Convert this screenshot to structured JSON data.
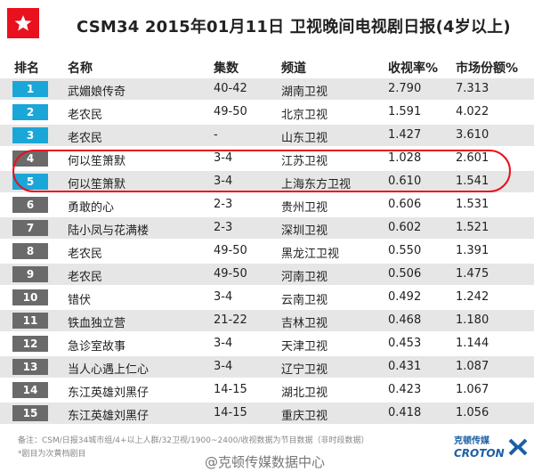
{
  "header": {
    "title": "CSM34   2015年01月11日  卫视晚间电视剧日报(4岁以上)"
  },
  "columns": {
    "rank": "排名",
    "name": "名称",
    "episodes": "集数",
    "channel": "频道",
    "rating": "收视率%",
    "share": "市场份额%"
  },
  "rows": [
    {
      "rank": "1",
      "name": "武媚娘传奇",
      "episodes": "40-42",
      "channel": "湖南卫视",
      "rating": "2.790",
      "share": "7.313"
    },
    {
      "rank": "2",
      "name": "老农民",
      "episodes": "49-50",
      "channel": "北京卫视",
      "rating": "1.591",
      "share": "4.022"
    },
    {
      "rank": "3",
      "name": "老农民",
      "episodes": "-",
      "channel": "山东卫视",
      "rating": "1.427",
      "share": "3.610"
    },
    {
      "rank": "4",
      "name": "何以笙箫默",
      "episodes": "3-4",
      "channel": "江苏卫视",
      "rating": "1.028",
      "share": "2.601"
    },
    {
      "rank": "5",
      "name": "何以笙箫默",
      "episodes": "3-4",
      "channel": "上海东方卫视",
      "rating": "0.610",
      "share": "1.541"
    },
    {
      "rank": "6",
      "name": "勇敢的心",
      "episodes": "2-3",
      "channel": "贵州卫视",
      "rating": "0.606",
      "share": "1.531"
    },
    {
      "rank": "7",
      "name": "陆小凤与花满楼",
      "episodes": "2-3",
      "channel": "深圳卫视",
      "rating": "0.602",
      "share": "1.521"
    },
    {
      "rank": "8",
      "name": "老农民",
      "episodes": "49-50",
      "channel": "黑龙江卫视",
      "rating": "0.550",
      "share": "1.391"
    },
    {
      "rank": "9",
      "name": "老农民",
      "episodes": "49-50",
      "channel": "河南卫视",
      "rating": "0.506",
      "share": "1.475"
    },
    {
      "rank": "10",
      "name": "错伏",
      "episodes": "3-4",
      "channel": "云南卫视",
      "rating": "0.492",
      "share": "1.242"
    },
    {
      "rank": "11",
      "name": "铁血独立营",
      "episodes": "21-22",
      "channel": "吉林卫视",
      "rating": "0.468",
      "share": "1.180"
    },
    {
      "rank": "12",
      "name": "急诊室故事",
      "episodes": "3-4",
      "channel": "天津卫视",
      "rating": "0.453",
      "share": "1.144"
    },
    {
      "rank": "13",
      "name": "当人心遇上仁心",
      "episodes": "3-4",
      "channel": "辽宁卫视",
      "rating": "0.431",
      "share": "1.087"
    },
    {
      "rank": "14",
      "name": "东江英雄刘黑仔",
      "episodes": "14-15",
      "channel": "湖北卫视",
      "rating": "0.423",
      "share": "1.067"
    },
    {
      "rank": "15",
      "name": "东江英雄刘黑仔",
      "episodes": "14-15",
      "channel": "重庆卫视",
      "rating": "0.418",
      "share": "1.056"
    }
  ],
  "footer": {
    "note1": "备注：CSM/日报34城市组/4+以上人群/32卫视/1900~2400/收视数据为节目数据（非时段数据）",
    "note2": "*剧目为次黄档剧目",
    "watermark": "@克顿传媒数据中心",
    "logo_cn": "克顿传媒",
    "logo_en": "CROTON"
  },
  "colors": {
    "accent_red": "#e8111d",
    "rank_top": "#1ba6d8",
    "rank_rest": "#6a6a6a",
    "row_stripe": "#e6e6e6",
    "logo_blue": "#1a5fa5"
  },
  "icons": {
    "header_badge": "star-icon",
    "logo_mark": "croton-logo-icon"
  }
}
